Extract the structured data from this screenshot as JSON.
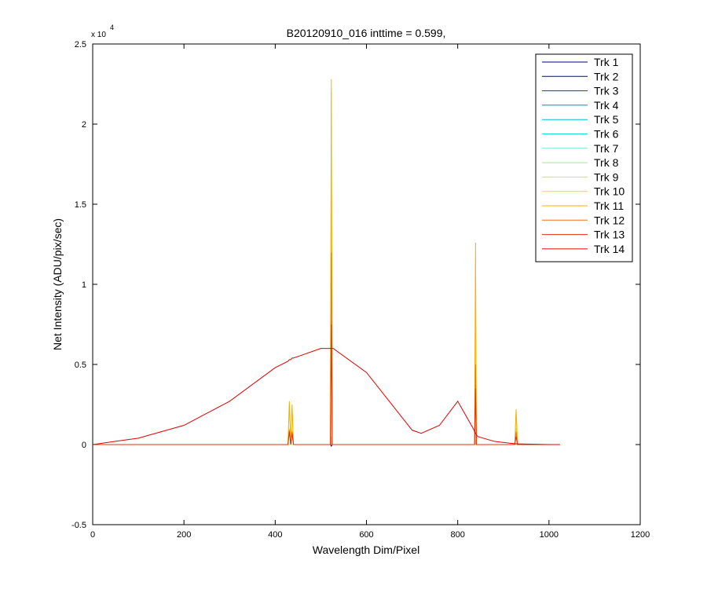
{
  "chart_data": {
    "type": "line",
    "title": "B20120910_016 inttime = 0.599,",
    "xlabel": "Wavelength Dim/Pixel",
    "ylabel": "Net Intensity (ADU/pix/sec)",
    "y_scale_label": "x 10",
    "y_scale_exponent": "4",
    "xlim": [
      0,
      1200
    ],
    "xticks": [
      0,
      200,
      400,
      600,
      800,
      1000,
      1200
    ],
    "ylim": [
      -0.5,
      2.5
    ],
    "yticks": [
      -0.5,
      0,
      0.5,
      1,
      1.5,
      2,
      2.5
    ],
    "grid": false,
    "legend": "upper right",
    "x": [
      0,
      50,
      100,
      200,
      300,
      400,
      428,
      431,
      434,
      437,
      440,
      500,
      519,
      521,
      523,
      525,
      527,
      600,
      700,
      720,
      760,
      800,
      834,
      837,
      839,
      841,
      844,
      880,
      925,
      928,
      931,
      1000,
      1024
    ],
    "series": [
      {
        "name": "Trk 1",
        "color": "#00007f",
        "values": [
          0,
          0,
          0,
          0,
          0,
          0,
          0,
          0,
          0,
          0,
          0,
          0,
          0,
          0,
          0,
          0,
          0,
          0,
          0,
          0,
          0,
          0,
          0,
          0,
          0,
          0,
          0,
          0,
          0,
          0,
          0,
          0,
          0
        ]
      },
      {
        "name": "Trk 2",
        "color": "#0000b0",
        "values": [
          0,
          0,
          0,
          0,
          0,
          0,
          0,
          0,
          0,
          0,
          0,
          0,
          0,
          0,
          -0.01,
          0,
          0,
          0,
          0,
          0,
          0,
          0,
          0,
          0,
          0,
          0,
          0,
          0,
          0,
          0,
          0,
          0,
          0
        ]
      },
      {
        "name": "Trk 3",
        "color": "#0040c0",
        "values": [
          0,
          0,
          0,
          0,
          0,
          0,
          0,
          0,
          0,
          0,
          0,
          0,
          0,
          0,
          0,
          0,
          0,
          0,
          0,
          0,
          0,
          0,
          0,
          0,
          0,
          0,
          0,
          0,
          0,
          0,
          0,
          0,
          0
        ]
      },
      {
        "name": "Trk 4",
        "color": "#0090a8",
        "values": [
          0,
          0,
          0,
          0,
          0,
          0,
          0,
          0,
          0,
          0,
          0,
          0,
          0,
          0,
          0.01,
          0,
          0,
          0,
          0,
          0,
          0,
          0,
          0,
          0,
          0,
          0,
          0,
          0,
          0,
          0,
          0,
          0,
          0
        ]
      },
      {
        "name": "Trk 5",
        "color": "#00c0d0",
        "values": [
          0,
          0,
          0,
          0,
          0,
          0,
          0,
          0,
          0,
          0,
          0,
          0,
          0,
          0,
          0,
          0,
          0,
          0,
          0,
          0,
          0,
          0,
          0,
          0,
          0,
          0,
          0,
          0,
          0,
          0,
          0,
          0,
          0
        ]
      },
      {
        "name": "Trk 6",
        "color": "#20d8e0",
        "values": [
          0,
          0,
          0,
          0,
          0,
          0,
          0,
          0,
          0,
          0,
          0,
          0,
          0,
          0,
          0.01,
          0,
          0,
          0,
          0,
          0,
          0,
          0,
          0,
          0,
          0,
          0,
          0,
          0,
          0,
          0,
          0,
          0,
          0
        ]
      },
      {
        "name": "Trk 7",
        "color": "#70e8e0",
        "values": [
          0,
          0,
          0,
          0,
          0,
          0,
          0,
          0,
          0,
          0,
          0,
          0,
          0,
          0,
          0.02,
          0,
          0,
          0,
          0,
          0,
          0,
          0,
          0,
          0,
          0.01,
          0,
          0,
          0,
          0,
          0,
          0,
          0,
          0
        ]
      },
      {
        "name": "Trk 8",
        "color": "#a0e890",
        "values": [
          0,
          0,
          0,
          0,
          0,
          0,
          0,
          0,
          0,
          0,
          0,
          0,
          0,
          0,
          0.05,
          0,
          0,
          0,
          0,
          0,
          0,
          0,
          0,
          0,
          0.02,
          0,
          0,
          0,
          0,
          0,
          0,
          0,
          0
        ]
      },
      {
        "name": "Trk 9",
        "color": "#d0e840",
        "values": [
          0,
          0,
          0,
          0,
          0,
          0,
          0,
          0.1,
          0,
          0.09,
          0,
          0,
          0,
          0,
          1.5,
          0,
          0,
          0,
          0,
          0,
          0,
          0,
          0,
          0,
          0.45,
          0,
          0,
          0,
          0,
          0.1,
          0,
          0,
          0
        ]
      },
      {
        "name": "Trk 10",
        "color": "#f0e000",
        "values": [
          0,
          0,
          0,
          0,
          0,
          0,
          0,
          0.25,
          0.01,
          0.22,
          0,
          0,
          0,
          0,
          2.2,
          0,
          0,
          0,
          0,
          0,
          0,
          0,
          0,
          0,
          1.0,
          0,
          0,
          0,
          0,
          0.2,
          0,
          0,
          0
        ]
      },
      {
        "name": "Trk 11",
        "color": "#f8b000",
        "values": [
          0,
          0,
          0,
          0,
          0,
          0,
          0,
          0.27,
          0.02,
          0.25,
          0,
          0,
          0,
          0,
          2.28,
          0,
          0,
          0,
          0,
          0,
          0,
          0,
          0,
          0,
          1.26,
          0,
          0,
          0,
          0,
          0.22,
          0,
          0,
          0
        ]
      },
      {
        "name": "Trk 12",
        "color": "#f07020",
        "values": [
          0,
          0,
          0,
          0,
          0,
          0,
          0,
          0.09,
          0,
          0.08,
          0,
          0,
          0,
          0,
          1.2,
          0,
          0,
          0,
          0,
          0,
          0,
          0,
          0,
          0,
          0.5,
          0,
          0,
          0,
          0,
          0.08,
          0,
          0,
          0
        ]
      },
      {
        "name": "Trk 13",
        "color": "#e03010",
        "values": [
          0,
          0,
          0,
          0,
          0,
          0,
          0,
          0.08,
          0,
          0.07,
          0,
          0,
          0,
          0,
          0.75,
          0,
          0,
          0,
          0,
          0,
          0,
          0,
          0,
          0,
          0.35,
          0,
          0,
          0,
          0,
          0.05,
          0,
          0,
          0
        ]
      },
      {
        "name": "Trk 14",
        "color": "#e00000",
        "values": [
          0,
          0.02,
          0.04,
          0.12,
          0.27,
          0.48,
          0.52,
          0.53,
          0.53,
          0.54,
          0.54,
          0.6,
          0.6,
          0.6,
          0.6,
          0.6,
          0.6,
          0.45,
          0.09,
          0.07,
          0.12,
          0.27,
          0.1,
          0.08,
          0.07,
          0.06,
          0.05,
          0.02,
          0.005,
          0.005,
          0.004,
          0,
          0
        ]
      }
    ]
  }
}
